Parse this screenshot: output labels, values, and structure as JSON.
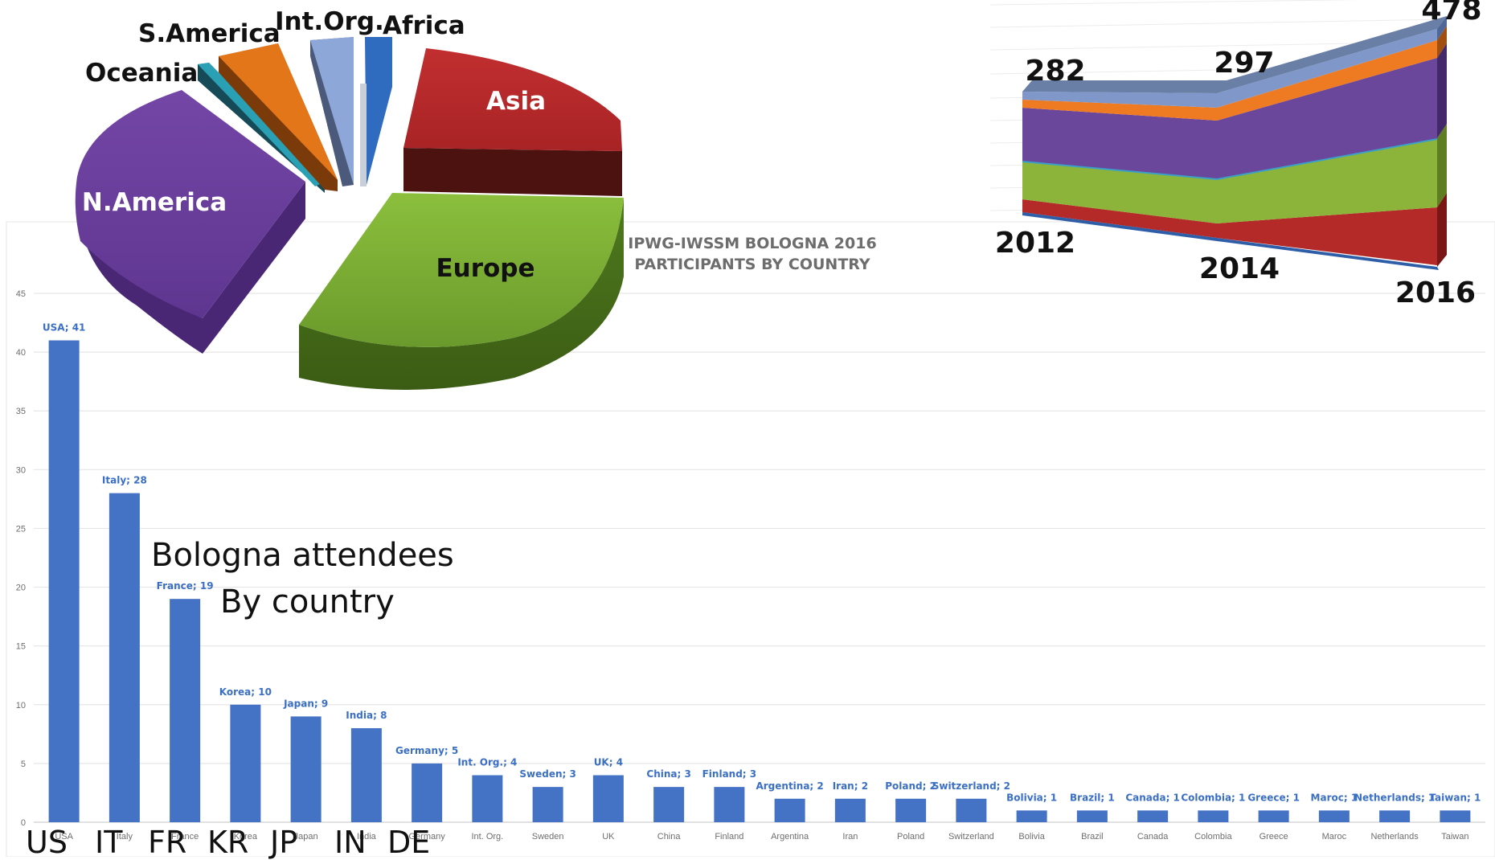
{
  "chart_data": [
    {
      "type": "bar",
      "title": "IPWG-IWSSM BOLOGNA 2016",
      "subtitle": "PARTICIPANTS BY COUNTRY",
      "categories": [
        "USA",
        "Italy",
        "France",
        "Korea",
        "Japan",
        "India",
        "Germany",
        "Int. Org.",
        "Sweden",
        "UK",
        "China",
        "Finland",
        "Argentina",
        "Iran",
        "Poland",
        "Switzerland",
        "Bolivia",
        "Brazil",
        "Canada",
        "Colombia",
        "Greece",
        "Maroc",
        "Netherlands",
        "Taiwan"
      ],
      "data_labels": [
        "USA; 41",
        "Italy; 28",
        "France; 19",
        "Korea;  10",
        "Japan; 9",
        "India; 8",
        "Germany; 5",
        "Int. Org.;  4",
        "Sweden; 3",
        "UK;  4",
        "China; 3",
        "Finland; 3",
        "Argentina; 2",
        "Iran;  2",
        "Poland; 2",
        "Switzerland; 2",
        "Bolivia; 1",
        "Brazil; 1",
        "Canada;  1",
        "Colombia;  1",
        "Greece; 1",
        "Maroc;  1",
        "Netherlands; 1",
        "Taiwan;  1"
      ],
      "values": [
        41,
        28,
        19,
        10,
        9,
        8,
        5,
        4,
        3,
        4,
        3,
        3,
        2,
        2,
        2,
        2,
        1,
        1,
        1,
        1,
        1,
        1,
        1,
        1
      ],
      "ylim": [
        0,
        45
      ],
      "yticks": [
        0,
        5,
        10,
        15,
        20,
        25,
        30,
        35,
        40,
        45
      ],
      "grid": true,
      "bar_color": "#4472c4",
      "label_color": "#3a6fc4"
    },
    {
      "type": "pie",
      "labels": [
        "Asia",
        "Europe",
        "N.America",
        "Oceania",
        "S.America",
        "Int.Org.",
        "Africa"
      ],
      "colors": [
        "#b5282b",
        "#7fad38",
        "#6c3f97",
        "#2aa0b4",
        "#e4761a",
        "#8da7d8",
        "#2f6cc0"
      ],
      "label_colors": [
        "#ffffff",
        "#111111",
        "#ffffff",
        "#111111",
        "#111111",
        "#111111",
        "#111111"
      ]
    },
    {
      "type": "area",
      "x": [
        "2012",
        "2014",
        "2016"
      ],
      "totals": [
        282,
        297,
        478
      ],
      "total_labels": [
        "282",
        "297",
        "478"
      ],
      "layer_colors": [
        "#c0312f",
        "#8db43a",
        "#6b479b",
        "#ee7a22",
        "#8098c9"
      ]
    }
  ],
  "overlay": {
    "line1": "Bologna attendees",
    "line2": "By country"
  },
  "country_codes": [
    "US",
    "IT",
    "FR",
    "KR",
    "JP",
    "IN",
    "DE"
  ]
}
